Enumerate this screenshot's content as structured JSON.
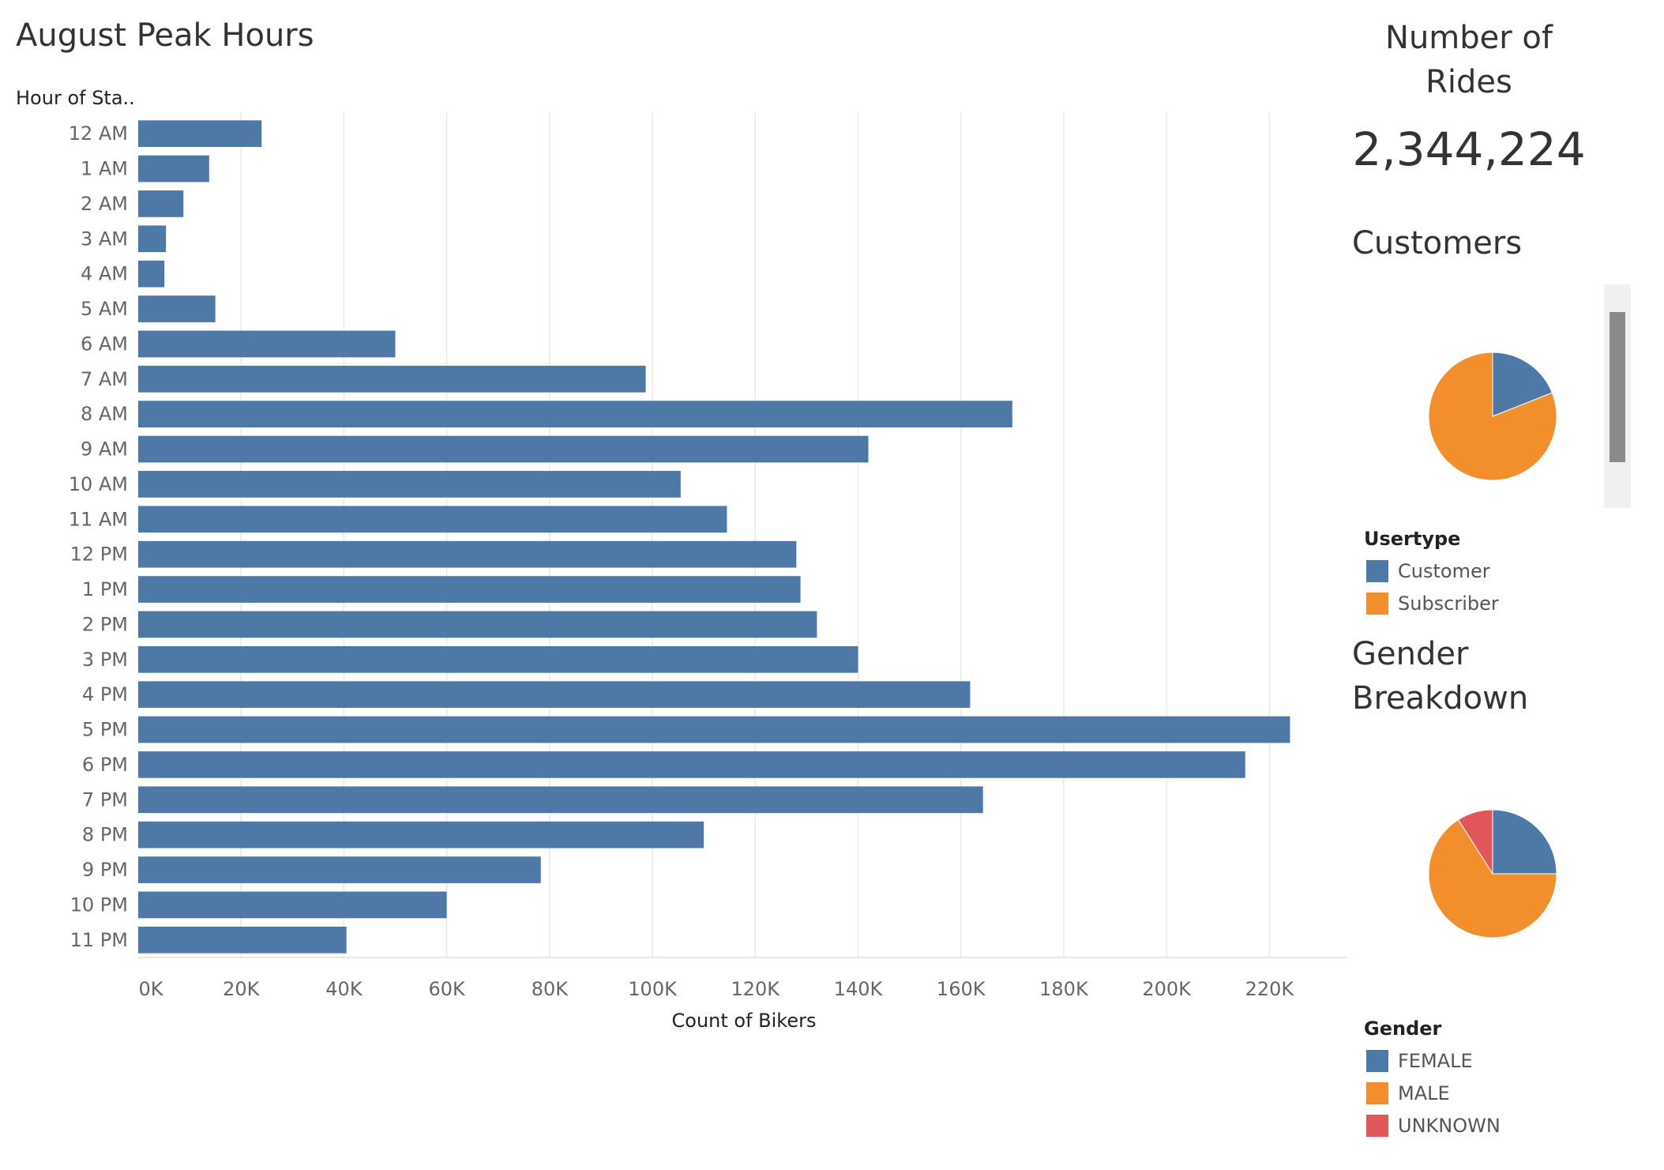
{
  "chart_data": [
    {
      "type": "bar",
      "orientation": "horizontal",
      "title": "August Peak Hours",
      "ylabel": "Hour of Sta..",
      "xlabel": "Count of Bikers",
      "xlim": [
        0,
        235000
      ],
      "xticks": [
        0,
        20000,
        40000,
        60000,
        80000,
        100000,
        120000,
        140000,
        160000,
        180000,
        200000,
        220000
      ],
      "xtick_labels": [
        "0K",
        "20K",
        "40K",
        "60K",
        "80K",
        "100K",
        "120K",
        "140K",
        "160K",
        "180K",
        "200K",
        "220K"
      ],
      "grid": "vertical",
      "color": "#4e79a7",
      "categories": [
        "12 AM",
        "1 AM",
        "2 AM",
        "3 AM",
        "4 AM",
        "5 AM",
        "6 AM",
        "7 AM",
        "8 AM",
        "9 AM",
        "10 AM",
        "11 AM",
        "12 PM",
        "1 PM",
        "2 PM",
        "3 PM",
        "4 PM",
        "5 PM",
        "6 PM",
        "7 PM",
        "8 PM",
        "9 PM",
        "10 PM",
        "11 PM"
      ],
      "values": [
        24000,
        13800,
        8800,
        5400,
        5100,
        15000,
        50000,
        98700,
        170000,
        142000,
        105500,
        114500,
        128000,
        128800,
        132000,
        140000,
        161800,
        224000,
        215300,
        164300,
        110000,
        78300,
        60000,
        40500
      ]
    },
    {
      "type": "pie",
      "title": "Customers",
      "legend_title": "Usertype",
      "labels": [
        "Customer",
        "Subscriber"
      ],
      "values": [
        0.19,
        0.81
      ],
      "colors": [
        "#4e79a7",
        "#f28e2b"
      ]
    },
    {
      "type": "pie",
      "title": "Gender Breakdown",
      "legend_title": "Gender",
      "labels": [
        "FEMALE",
        "MALE",
        "UNKNOWN"
      ],
      "values": [
        0.25,
        0.66,
        0.09
      ],
      "colors": [
        "#4e79a7",
        "#f28e2b",
        "#e15759"
      ]
    }
  ],
  "page": {
    "title": "August Peak Hours",
    "rides_title_line1": "Number of",
    "rides_title_line2": "Rides",
    "rides_value": "2,344,224",
    "customers_title": "Customers",
    "gender_title_line1": "Gender",
    "gender_title_line2": "Breakdown",
    "usertype_legend_title": "Usertype",
    "usertype_items": [
      "Customer",
      "Subscriber"
    ],
    "gender_legend_title": "Gender",
    "gender_items": [
      "FEMALE",
      "MALE",
      "UNKNOWN"
    ]
  },
  "colors": {
    "bar": "#4e79a7",
    "blue": "#4e79a7",
    "orange": "#f28e2b",
    "red": "#e15759",
    "grid": "#e8e8e8"
  }
}
